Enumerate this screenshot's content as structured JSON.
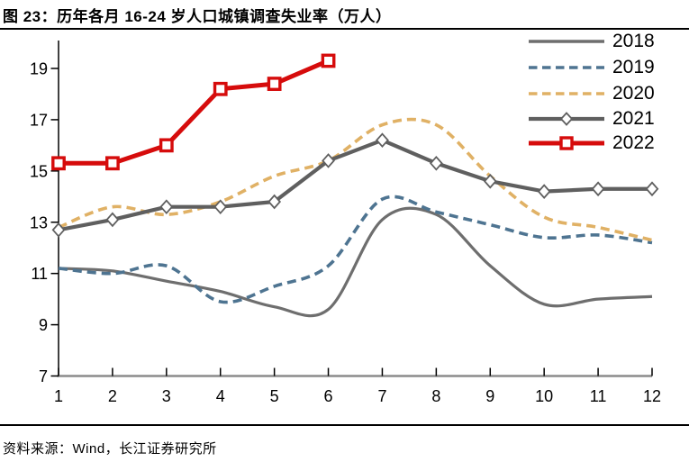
{
  "header": {
    "title": "图 23：历年各月 16-24 岁人口城镇调查失业率（万人）"
  },
  "footer": {
    "source": "资料来源：Wind，长江证券研究所"
  },
  "chart_data": {
    "type": "line",
    "x": [
      1,
      2,
      3,
      4,
      5,
      6,
      7,
      8,
      9,
      10,
      11,
      12
    ],
    "x_tick_labels": [
      "1",
      "2",
      "3",
      "4",
      "5",
      "6",
      "7",
      "8",
      "9",
      "10",
      "11",
      "12"
    ],
    "yticks": [
      7,
      9,
      11,
      13,
      15,
      17,
      19
    ],
    "ylim": [
      7,
      19
    ],
    "xlabel": "",
    "ylabel": "",
    "grid": false,
    "legend_position": "top-right",
    "axis_colors": {
      "y_axis": "#000000",
      "x_axis": "#8c8c8c",
      "tick": "#000000",
      "label": "#000000"
    },
    "series": [
      {
        "name": "2018",
        "color": "#6e6e6e",
        "style": "solid",
        "marker": "none",
        "smooth": true,
        "width": 3.2,
        "values": [
          11.2,
          11.1,
          10.7,
          10.3,
          9.7,
          9.6,
          13.1,
          13.3,
          11.3,
          9.8,
          10.0,
          10.1
        ]
      },
      {
        "name": "2019",
        "color": "#4e7491",
        "style": "dashed",
        "marker": "none",
        "smooth": true,
        "width": 3.6,
        "values": [
          11.2,
          11.0,
          11.3,
          9.9,
          10.5,
          11.3,
          13.9,
          13.4,
          12.9,
          12.4,
          12.5,
          12.2
        ]
      },
      {
        "name": "2020",
        "color": "#e0b165",
        "style": "dashed",
        "marker": "none",
        "smooth": true,
        "width": 3.6,
        "values": [
          12.8,
          13.6,
          13.3,
          13.8,
          14.8,
          15.4,
          16.8,
          16.8,
          14.8,
          13.2,
          12.8,
          12.3
        ]
      },
      {
        "name": "2021",
        "color": "#5f5f5f",
        "style": "solid",
        "marker": "diamond",
        "smooth": false,
        "width": 4.2,
        "values": [
          12.7,
          13.1,
          13.6,
          13.6,
          13.8,
          15.4,
          16.2,
          15.3,
          14.6,
          14.2,
          14.3,
          14.3
        ]
      },
      {
        "name": "2022",
        "color": "#d60c0c",
        "style": "solid",
        "marker": "square",
        "smooth": false,
        "width": 5.0,
        "values": [
          15.3,
          15.3,
          16.0,
          18.2,
          18.4,
          19.3
        ]
      }
    ]
  }
}
